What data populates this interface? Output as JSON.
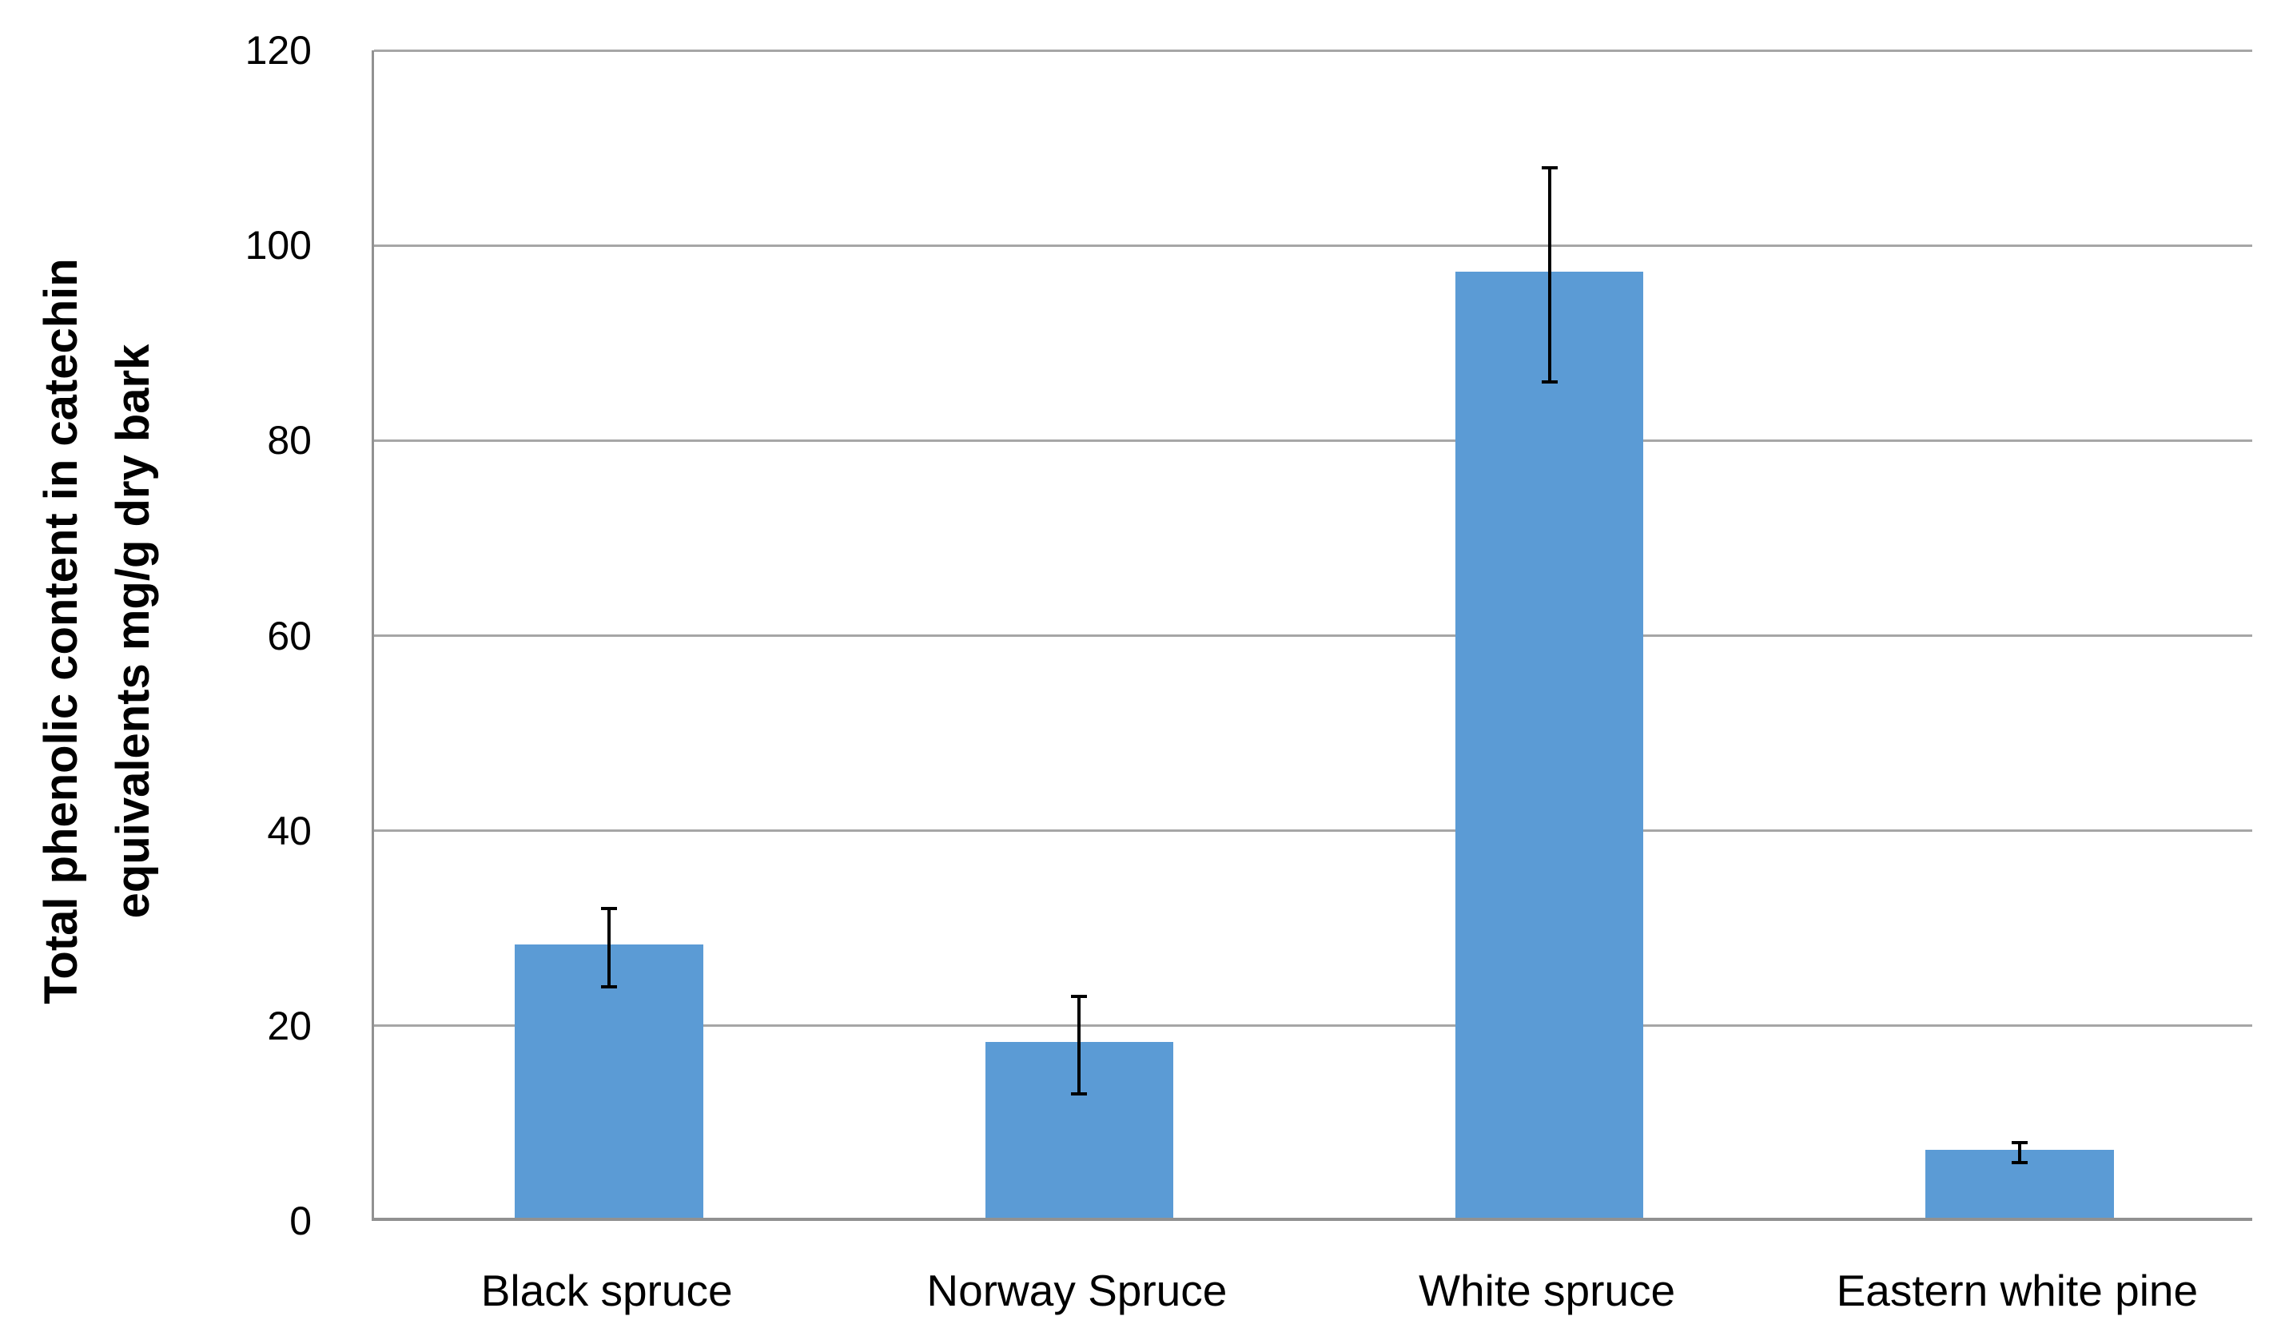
{
  "chart_data": {
    "type": "bar",
    "categories": [
      "Black spruce",
      "Norway Spruce",
      "White spruce",
      "Eastern white pine"
    ],
    "values": [
      28,
      18,
      97,
      7
    ],
    "error_bars_plus_minus": [
      4,
      5,
      11,
      1
    ],
    "title": "",
    "xlabel": "",
    "ylabel": "Total phenolic content in catechin equivalents mg/g dry bark",
    "ylabel_wrapped": "Total phenolic content in catechin\nequivalents mg/g dry bark",
    "ylim": [
      0,
      120
    ],
    "yticks": [
      0,
      20,
      40,
      60,
      80,
      100,
      120
    ],
    "grid": "horizontal-major",
    "legend": "none",
    "bar_gap_width_percent": 150,
    "colors": {
      "bar": "#5B9BD5",
      "gridline": "#A6A6A6",
      "axis": "#919191",
      "error_bar": "#000000",
      "text": "#000000",
      "background": "#FFFFFF"
    }
  }
}
